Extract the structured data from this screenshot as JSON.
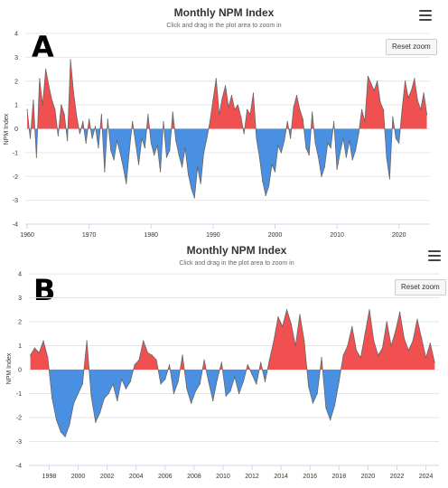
{
  "chart_data": [
    {
      "panel_label": "A",
      "type": "area",
      "title": "Monthly NPM Index",
      "subtitle": "Click and drag in the plot area to zoom in",
      "ylabel": "NPM Index",
      "xlabel": "",
      "reset_label": "Reset zoom",
      "xlim": [
        1959.7,
        2025.0
      ],
      "ylim": [
        -4,
        4
      ],
      "yticks": [
        "4",
        "3",
        "2",
        "1",
        "0",
        "-1",
        "-2",
        "-3",
        "-4"
      ],
      "xticks": [
        "1960",
        "1970",
        "1980",
        "1990",
        "2000",
        "2010",
        "2020"
      ],
      "grid": true,
      "positive_color": "#f05050",
      "negative_color": "#4a90e2",
      "line_color": "#666666",
      "x": [
        1960.0,
        1960.5,
        1961.0,
        1961.5,
        1962.0,
        1962.5,
        1963.0,
        1963.5,
        1964.0,
        1964.5,
        1965.0,
        1965.5,
        1966.0,
        1966.5,
        1967.0,
        1967.5,
        1968.0,
        1968.5,
        1969.0,
        1969.5,
        1970.0,
        1970.5,
        1971.0,
        1971.5,
        1972.0,
        1972.5,
        1973.0,
        1973.5,
        1974.0,
        1974.5,
        1975.0,
        1975.5,
        1976.0,
        1976.5,
        1977.0,
        1977.5,
        1978.0,
        1978.5,
        1979.0,
        1979.5,
        1980.0,
        1980.5,
        1981.0,
        1981.5,
        1982.0,
        1982.5,
        1983.0,
        1983.5,
        1984.0,
        1984.5,
        1985.0,
        1985.5,
        1986.0,
        1986.5,
        1987.0,
        1987.5,
        1988.0,
        1988.5,
        1989.0,
        1989.5,
        1990.0,
        1990.5,
        1991.0,
        1991.5,
        1992.0,
        1992.5,
        1993.0,
        1993.5,
        1994.0,
        1994.5,
        1995.0,
        1995.5,
        1996.0,
        1996.5,
        1997.0,
        1997.5,
        1998.0,
        1998.5,
        1999.0,
        1999.5,
        2000.0,
        2000.5,
        2001.0,
        2001.5,
        2002.0,
        2002.5,
        2003.0,
        2003.5,
        2004.0,
        2004.5,
        2005.0,
        2005.5,
        2006.0,
        2006.5,
        2007.0,
        2007.5,
        2008.0,
        2008.5,
        2009.0,
        2009.5,
        2010.0,
        2010.5,
        2011.0,
        2011.5,
        2012.0,
        2012.5,
        2013.0,
        2013.5,
        2014.0,
        2014.5,
        2015.0,
        2015.5,
        2016.0,
        2016.5,
        2017.0,
        2017.5,
        2018.0,
        2018.5,
        2019.0,
        2019.5,
        2020.0,
        2020.5,
        2021.0,
        2021.5,
        2022.0,
        2022.5,
        2023.0,
        2023.5,
        2024.0,
        2024.5
      ],
      "y": [
        0.8,
        -0.4,
        1.2,
        -1.2,
        2.1,
        1.0,
        2.5,
        1.8,
        1.2,
        0.8,
        -0.3,
        1.0,
        0.6,
        -0.5,
        2.9,
        1.5,
        0.5,
        -0.2,
        0.3,
        -0.6,
        0.4,
        -0.4,
        0.1,
        -0.8,
        0.6,
        -1.8,
        0.4,
        -0.9,
        -1.3,
        -0.5,
        -1.0,
        -1.6,
        -2.3,
        -0.9,
        0.3,
        -0.6,
        -1.5,
        -0.4,
        -0.8,
        0.6,
        -0.6,
        -1.1,
        -0.7,
        -1.8,
        0.3,
        -1.2,
        -0.9,
        0.7,
        -0.5,
        -1.1,
        -1.6,
        -0.8,
        -1.9,
        -2.5,
        -2.9,
        -1.6,
        -2.3,
        -1.0,
        -0.4,
        0.3,
        1.2,
        2.1,
        0.6,
        1.3,
        1.8,
        0.9,
        1.4,
        0.8,
        1.0,
        0.5,
        -0.2,
        0.8,
        0.6,
        1.5,
        -0.4,
        -1.2,
        -2.2,
        -2.8,
        -2.4,
        -1.5,
        -1.8,
        -0.7,
        -1.0,
        -0.5,
        0.3,
        -0.4,
        0.9,
        1.4,
        0.8,
        0.4,
        -0.8,
        -1.1,
        0.7,
        -0.6,
        -1.2,
        -2.0,
        -1.6,
        -0.6,
        -0.8,
        0.3,
        -1.7,
        -1.0,
        -0.4,
        -1.2,
        -0.5,
        -1.3,
        -0.9,
        -0.2,
        0.8,
        0.3,
        2.2,
        1.9,
        1.6,
        2.0,
        1.1,
        0.8,
        -1.2,
        -2.1,
        0.5,
        -0.4,
        -0.6,
        0.8,
        2.0,
        1.3,
        1.6,
        2.1,
        1.2,
        0.8,
        1.5,
        0.6
      ]
    },
    {
      "panel_label": "B",
      "type": "area",
      "title": "Monthly NPM Index",
      "subtitle": "Click and drag in the plot area to zoom in",
      "ylabel": "NPM Index",
      "xlabel": "",
      "reset_label": "Reset zoom",
      "xlim": [
        1996.6,
        2024.9
      ],
      "ylim": [
        -4,
        4
      ],
      "yticks": [
        "4",
        "3",
        "2",
        "1",
        "0",
        "-1",
        "-2",
        "-3",
        "-4"
      ],
      "xticks": [
        "1998",
        "2000",
        "2002",
        "2004",
        "2006",
        "2008",
        "2010",
        "2012",
        "2014",
        "2016",
        "2018",
        "2020",
        "2022",
        "2024"
      ],
      "grid": true,
      "positive_color": "#f05050",
      "negative_color": "#4a90e2",
      "line_color": "#666666",
      "x": [
        1996.7,
        1997.0,
        1997.3,
        1997.6,
        1997.9,
        1998.2,
        1998.5,
        1998.8,
        1999.1,
        1999.4,
        1999.7,
        2000.0,
        2000.3,
        2000.6,
        2000.9,
        2001.2,
        2001.5,
        2001.8,
        2002.1,
        2002.4,
        2002.7,
        2003.0,
        2003.3,
        2003.6,
        2003.9,
        2004.2,
        2004.5,
        2004.8,
        2005.1,
        2005.4,
        2005.7,
        2006.0,
        2006.3,
        2006.6,
        2006.9,
        2007.2,
        2007.5,
        2007.8,
        2008.1,
        2008.4,
        2008.7,
        2009.0,
        2009.3,
        2009.6,
        2009.9,
        2010.2,
        2010.5,
        2010.8,
        2011.1,
        2011.4,
        2011.7,
        2012.0,
        2012.3,
        2012.6,
        2012.9,
        2013.2,
        2013.5,
        2013.8,
        2014.1,
        2014.4,
        2014.7,
        2015.0,
        2015.3,
        2015.6,
        2015.9,
        2016.2,
        2016.5,
        2016.8,
        2017.1,
        2017.4,
        2017.7,
        2018.0,
        2018.3,
        2018.6,
        2018.9,
        2019.2,
        2019.5,
        2019.8,
        2020.1,
        2020.4,
        2020.7,
        2021.0,
        2021.3,
        2021.6,
        2021.9,
        2022.2,
        2022.5,
        2022.8,
        2023.1,
        2023.4,
        2023.7,
        2024.0,
        2024.3,
        2024.6
      ],
      "y": [
        0.6,
        0.9,
        0.7,
        1.2,
        0.5,
        -1.2,
        -2.1,
        -2.6,
        -2.8,
        -2.3,
        -1.4,
        -1.0,
        -0.6,
        1.2,
        -1.1,
        -2.2,
        -1.8,
        -1.2,
        -1.0,
        -0.6,
        -1.3,
        -0.4,
        -0.8,
        -0.5,
        0.2,
        0.4,
        1.2,
        0.7,
        0.6,
        0.4,
        -0.6,
        -0.4,
        0.2,
        -1.0,
        -0.5,
        0.6,
        -0.8,
        -1.4,
        -0.9,
        -0.6,
        0.4,
        -0.5,
        -1.3,
        -0.4,
        0.3,
        -1.1,
        -0.9,
        -0.3,
        -1.0,
        -0.5,
        0.2,
        -0.2,
        -0.6,
        0.3,
        -0.5,
        0.4,
        1.2,
        2.2,
        1.8,
        2.5,
        1.9,
        1.0,
        2.3,
        1.2,
        -0.7,
        -1.4,
        -1.0,
        0.5,
        -1.6,
        -2.1,
        -1.5,
        -0.5,
        0.6,
        1.0,
        1.8,
        0.8,
        0.5,
        1.5,
        2.5,
        1.2,
        0.6,
        0.9,
        2.0,
        1.0,
        1.6,
        2.4,
        1.3,
        0.8,
        1.2,
        2.1,
        1.3,
        0.5,
        1.1,
        0.3
      ]
    }
  ]
}
